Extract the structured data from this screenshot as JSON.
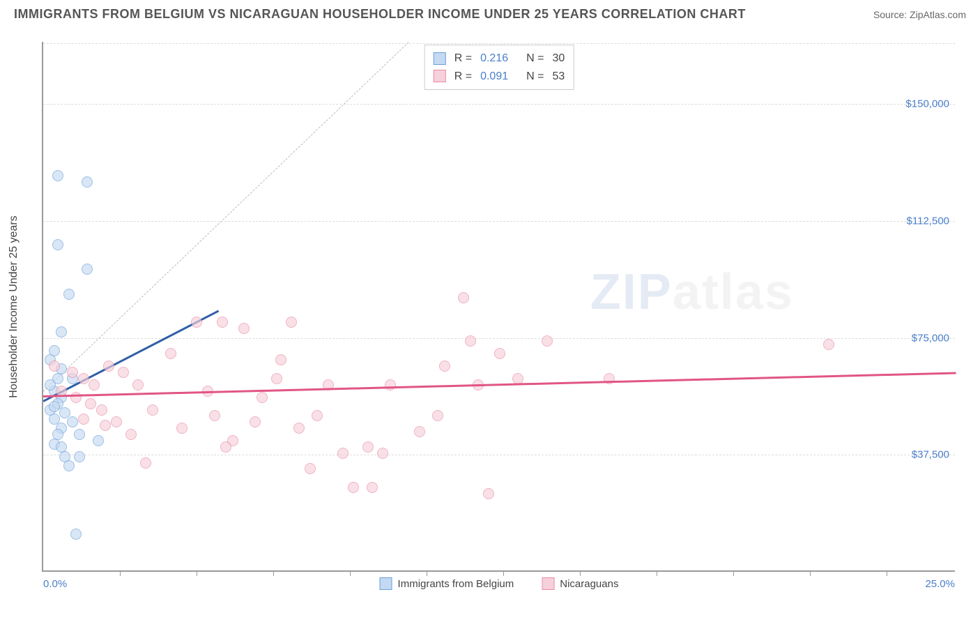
{
  "title": "IMMIGRANTS FROM BELGIUM VS NICARAGUAN HOUSEHOLDER INCOME UNDER 25 YEARS CORRELATION CHART",
  "source": "Source: ZipAtlas.com",
  "watermark_a": "ZIP",
  "watermark_b": "atlas",
  "chart": {
    "type": "scatter",
    "y_axis_label": "Householder Income Under 25 years",
    "xlim": [
      0,
      25
    ],
    "ylim": [
      0,
      170000
    ],
    "x_tick_positions": [
      2.1,
      4.2,
      6.3,
      8.4,
      10.5,
      12.6,
      14.7,
      16.8,
      18.9,
      21.0,
      23.1
    ],
    "y_gridlines": [
      37500,
      75000,
      112500,
      150000
    ],
    "y_tick_labels": [
      "$37,500",
      "$75,000",
      "$112,500",
      "$150,000"
    ],
    "x_min_label": "0.0%",
    "x_max_label": "25.0%",
    "background_color": "#ffffff",
    "grid_color": "#dddddd",
    "axis_color": "#999999",
    "tick_label_color": "#4a7ec9",
    "diagonal_line": {
      "x1": 0,
      "y1": 58000,
      "x2": 10,
      "y2": 170000,
      "color": "#bbbbbb"
    },
    "series": [
      {
        "name": "Immigrants from Belgium",
        "fill": "#c4d9f2",
        "stroke": "#6a9fd6",
        "trend_color": "#2f5fa6",
        "R": "0.216",
        "N": "30",
        "trend": {
          "x1": 0,
          "y1": 55000,
          "x2": 4.8,
          "y2": 84000
        },
        "points": [
          [
            0.4,
            127000
          ],
          [
            1.2,
            125000
          ],
          [
            0.5,
            77000
          ],
          [
            0.3,
            71000
          ],
          [
            0.2,
            68000
          ],
          [
            0.4,
            62000
          ],
          [
            0.8,
            62000
          ],
          [
            0.3,
            58000
          ],
          [
            0.5,
            56000
          ],
          [
            0.4,
            54000
          ],
          [
            0.2,
            52000
          ],
          [
            0.6,
            51000
          ],
          [
            0.3,
            49000
          ],
          [
            0.8,
            48000
          ],
          [
            0.5,
            46000
          ],
          [
            0.4,
            44000
          ],
          [
            1.0,
            44000
          ],
          [
            1.5,
            42000
          ],
          [
            0.3,
            41000
          ],
          [
            0.5,
            40000
          ],
          [
            0.6,
            37000
          ],
          [
            1.0,
            37000
          ],
          [
            0.7,
            34000
          ],
          [
            0.9,
            12000
          ],
          [
            0.7,
            89000
          ],
          [
            1.2,
            97000
          ],
          [
            0.5,
            65000
          ],
          [
            0.4,
            105000
          ],
          [
            0.2,
            60000
          ],
          [
            0.3,
            53000
          ]
        ]
      },
      {
        "name": "Nicaraguans",
        "fill": "#f6d0da",
        "stroke": "#e88ba5",
        "trend_color": "#e15584",
        "R": "0.091",
        "N": "53",
        "trend": {
          "x1": 0,
          "y1": 56500,
          "x2": 25,
          "y2": 64000
        },
        "points": [
          [
            0.3,
            66000
          ],
          [
            0.8,
            64000
          ],
          [
            1.1,
            62000
          ],
          [
            1.4,
            60000
          ],
          [
            0.5,
            58000
          ],
          [
            0.9,
            56000
          ],
          [
            1.3,
            54000
          ],
          [
            1.6,
            52000
          ],
          [
            1.1,
            49000
          ],
          [
            1.7,
            47000
          ],
          [
            2.2,
            64000
          ],
          [
            2.6,
            60000
          ],
          [
            2.0,
            48000
          ],
          [
            2.4,
            44000
          ],
          [
            2.8,
            35000
          ],
          [
            3.5,
            70000
          ],
          [
            3.8,
            46000
          ],
          [
            4.2,
            80000
          ],
          [
            4.5,
            58000
          ],
          [
            4.9,
            80000
          ],
          [
            5.2,
            42000
          ],
          [
            5.5,
            78000
          ],
          [
            5.8,
            48000
          ],
          [
            6.0,
            56000
          ],
          [
            6.4,
            62000
          ],
          [
            6.8,
            80000
          ],
          [
            7.0,
            46000
          ],
          [
            7.3,
            33000
          ],
          [
            7.8,
            60000
          ],
          [
            8.2,
            38000
          ],
          [
            8.5,
            27000
          ],
          [
            8.9,
            40000
          ],
          [
            9.0,
            27000
          ],
          [
            9.3,
            38000
          ],
          [
            9.5,
            60000
          ],
          [
            10.3,
            45000
          ],
          [
            11.0,
            66000
          ],
          [
            11.5,
            88000
          ],
          [
            11.7,
            74000
          ],
          [
            11.9,
            60000
          ],
          [
            12.2,
            25000
          ],
          [
            12.5,
            70000
          ],
          [
            13.0,
            62000
          ],
          [
            13.8,
            74000
          ],
          [
            15.5,
            62000
          ],
          [
            21.5,
            73000
          ],
          [
            6.5,
            68000
          ],
          [
            3.0,
            52000
          ],
          [
            4.7,
            50000
          ],
          [
            10.8,
            50000
          ],
          [
            1.8,
            66000
          ],
          [
            5.0,
            40000
          ],
          [
            7.5,
            50000
          ]
        ]
      }
    ],
    "bottom_legend": [
      {
        "label": "Immigrants from Belgium",
        "fill": "#c4d9f2",
        "stroke": "#6a9fd6"
      },
      {
        "label": "Nicaraguans",
        "fill": "#f6d0da",
        "stroke": "#e88ba5"
      }
    ]
  }
}
